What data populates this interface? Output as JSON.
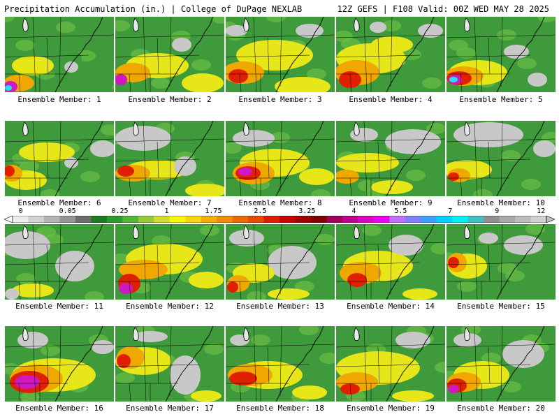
{
  "header": {
    "left": "Precipitation Accumulation (in.) | College of DuPage NEXLAB",
    "right": "12Z GEFS | F108 Valid: 00Z WED MAY 28 2025"
  },
  "caption_prefix": "Ensemble Member:",
  "panels": [
    {
      "member": "1",
      "caption": "Ensemble Member: 1",
      "blobs": [
        [
          "g",
          70,
          60,
          40,
          20
        ],
        [
          "y",
          40,
          70,
          30,
          14
        ],
        [
          "o",
          20,
          95,
          22,
          12
        ],
        [
          "m",
          8,
          100,
          10,
          8
        ],
        [
          "c",
          5,
          102,
          5,
          4
        ],
        [
          "w",
          95,
          72,
          10,
          8
        ],
        [
          "g",
          130,
          95,
          25,
          18
        ]
      ]
    },
    {
      "member": "2",
      "caption": "Ensemble Member: 2",
      "blobs": [
        [
          "y",
          60,
          70,
          45,
          18
        ],
        [
          "o",
          25,
          80,
          25,
          14
        ],
        [
          "m",
          8,
          90,
          9,
          8
        ],
        [
          "y",
          125,
          95,
          30,
          14
        ],
        [
          "w",
          95,
          40,
          14,
          10
        ]
      ]
    },
    {
      "member": "3",
      "caption": "Ensemble Member: 3",
      "blobs": [
        [
          "y",
          70,
          55,
          55,
          22
        ],
        [
          "o",
          25,
          80,
          30,
          16
        ],
        [
          "r",
          18,
          85,
          14,
          10
        ],
        [
          "y",
          110,
          100,
          40,
          14
        ],
        [
          "w",
          120,
          20,
          20,
          10
        ],
        [
          "w",
          15,
          20,
          16,
          8
        ]
      ]
    },
    {
      "member": "4",
      "caption": "Ensemble Member: 4",
      "blobs": [
        [
          "y",
          50,
          60,
          50,
          22
        ],
        [
          "o",
          30,
          80,
          32,
          18
        ],
        [
          "r",
          20,
          90,
          16,
          12
        ],
        [
          "y",
          80,
          40,
          30,
          12
        ],
        [
          "w",
          135,
          20,
          18,
          10
        ],
        [
          "w",
          60,
          15,
          12,
          8
        ]
      ]
    },
    {
      "member": "5",
      "caption": "Ensemble Member: 5",
      "blobs": [
        [
          "y",
          45,
          80,
          42,
          18
        ],
        [
          "o",
          25,
          85,
          28,
          14
        ],
        [
          "r",
          18,
          88,
          18,
          10
        ],
        [
          "m",
          12,
          90,
          10,
          7
        ],
        [
          "c",
          10,
          90,
          6,
          4
        ],
        [
          "w",
          100,
          50,
          18,
          10
        ],
        [
          "w",
          130,
          90,
          14,
          10
        ]
      ]
    },
    {
      "member": "6",
      "caption": "Ensemble Member: 6",
      "blobs": [
        [
          "y",
          60,
          45,
          40,
          14
        ],
        [
          "y",
          30,
          85,
          30,
          14
        ],
        [
          "o",
          10,
          75,
          15,
          12
        ],
        [
          "r",
          6,
          72,
          8,
          8
        ],
        [
          "w",
          140,
          40,
          18,
          12
        ],
        [
          "w",
          95,
          60,
          10,
          8
        ]
      ]
    },
    {
      "member": "7",
      "caption": "Ensemble Member: 7",
      "blobs": [
        [
          "w",
          40,
          25,
          40,
          18
        ],
        [
          "y",
          60,
          70,
          45,
          14
        ],
        [
          "o",
          25,
          75,
          25,
          12
        ],
        [
          "r",
          15,
          72,
          12,
          8
        ],
        [
          "w",
          100,
          65,
          16,
          14
        ],
        [
          "y",
          130,
          100,
          30,
          10
        ]
      ]
    },
    {
      "member": "8",
      "caption": "Ensemble Member: 8",
      "blobs": [
        [
          "y",
          70,
          60,
          50,
          20
        ],
        [
          "o",
          40,
          75,
          30,
          16
        ],
        [
          "r",
          32,
          75,
          18,
          10
        ],
        [
          "m",
          28,
          73,
          10,
          6
        ],
        [
          "w",
          40,
          25,
          30,
          12
        ],
        [
          "y",
          130,
          80,
          25,
          12
        ]
      ]
    },
    {
      "member": "9",
      "caption": "Ensemble Member: 9",
      "blobs": [
        [
          "w",
          110,
          30,
          40,
          18
        ],
        [
          "y",
          45,
          60,
          45,
          14
        ],
        [
          "o",
          15,
          80,
          18,
          10
        ],
        [
          "y",
          80,
          95,
          30,
          10
        ],
        [
          "w",
          40,
          20,
          20,
          10
        ]
      ]
    },
    {
      "member": "10",
      "caption": "Ensemble Member: 10",
      "blobs": [
        [
          "w",
          60,
          20,
          50,
          18
        ],
        [
          "y",
          30,
          70,
          35,
          14
        ],
        [
          "o",
          18,
          78,
          16,
          10
        ],
        [
          "r",
          10,
          80,
          8,
          6
        ],
        [
          "w",
          140,
          40,
          16,
          12
        ]
      ]
    },
    {
      "member": "11",
      "caption": "Ensemble Member: 11",
      "blobs": [
        [
          "w",
          30,
          30,
          35,
          20
        ],
        [
          "w",
          100,
          60,
          28,
          22
        ],
        [
          "y",
          40,
          95,
          30,
          10
        ],
        [
          "w",
          10,
          100,
          10,
          8
        ]
      ]
    },
    {
      "member": "12",
      "caption": "Ensemble Member: 12",
      "blobs": [
        [
          "y",
          70,
          50,
          55,
          22
        ],
        [
          "o",
          40,
          65,
          35,
          14
        ],
        [
          "r",
          20,
          85,
          16,
          14
        ],
        [
          "m",
          15,
          92,
          10,
          8
        ],
        [
          "y",
          130,
          80,
          25,
          12
        ]
      ]
    },
    {
      "member": "13",
      "caption": "Ensemble Member: 13",
      "blobs": [
        [
          "w",
          95,
          55,
          35,
          24
        ],
        [
          "y",
          40,
          70,
          30,
          14
        ],
        [
          "o",
          18,
          85,
          16,
          12
        ],
        [
          "r",
          10,
          90,
          8,
          8
        ],
        [
          "y",
          90,
          100,
          30,
          8
        ],
        [
          "w",
          30,
          20,
          25,
          12
        ]
      ]
    },
    {
      "member": "14",
      "caption": "Ensemble Member: 14",
      "blobs": [
        [
          "y",
          60,
          60,
          50,
          22
        ],
        [
          "o",
          35,
          70,
          30,
          16
        ],
        [
          "r",
          30,
          80,
          14,
          10
        ],
        [
          "w",
          100,
          30,
          25,
          15
        ],
        [
          "y",
          120,
          100,
          25,
          8
        ]
      ]
    },
    {
      "member": "15",
      "caption": "Ensemble Member: 15",
      "blobs": [
        [
          "y",
          30,
          60,
          28,
          18
        ],
        [
          "o",
          15,
          55,
          14,
          14
        ],
        [
          "r",
          10,
          55,
          8,
          8
        ],
        [
          "w",
          110,
          30,
          28,
          14
        ],
        [
          "w",
          60,
          20,
          14,
          8
        ],
        [
          "g",
          120,
          95,
          20,
          12
        ]
      ]
    },
    {
      "member": "16",
      "caption": "Ensemble Member: 16",
      "blobs": [
        [
          "y",
          70,
          70,
          60,
          24
        ],
        [
          "o",
          45,
          75,
          38,
          20
        ],
        [
          "r",
          35,
          80,
          28,
          16
        ],
        [
          "m",
          32,
          80,
          18,
          10
        ],
        [
          "w",
          40,
          20,
          22,
          12
        ],
        [
          "w",
          140,
          30,
          16,
          10
        ]
      ]
    },
    {
      "member": "17",
      "caption": "Ensemble Member: 17",
      "blobs": [
        [
          "y",
          40,
          50,
          40,
          20
        ],
        [
          "o",
          22,
          45,
          20,
          16
        ],
        [
          "r",
          12,
          50,
          10,
          10
        ],
        [
          "w",
          100,
          70,
          22,
          28
        ],
        [
          "w",
          50,
          15,
          25,
          8
        ],
        [
          "y",
          130,
          100,
          22,
          8
        ]
      ]
    },
    {
      "member": "18",
      "caption": "Ensemble Member: 18",
      "blobs": [
        [
          "y",
          60,
          70,
          50,
          20
        ],
        [
          "o",
          35,
          70,
          32,
          16
        ],
        [
          "r",
          25,
          75,
          20,
          10
        ],
        [
          "y",
          120,
          95,
          25,
          10
        ],
        [
          "w",
          20,
          20,
          14,
          8
        ]
      ]
    },
    {
      "member": "19",
      "caption": "Ensemble Member: 19",
      "blobs": [
        [
          "y",
          60,
          60,
          60,
          24
        ],
        [
          "o",
          30,
          80,
          30,
          14
        ],
        [
          "r",
          20,
          90,
          14,
          8
        ],
        [
          "w",
          110,
          20,
          25,
          12
        ],
        [
          "y",
          110,
          100,
          30,
          8
        ]
      ]
    },
    {
      "member": "20",
      "caption": "Ensemble Member: 20",
      "blobs": [
        [
          "w",
          110,
          40,
          30,
          20
        ],
        [
          "y",
          50,
          70,
          40,
          20
        ],
        [
          "o",
          25,
          80,
          24,
          14
        ],
        [
          "r",
          15,
          85,
          14,
          10
        ],
        [
          "m",
          10,
          90,
          8,
          6
        ],
        [
          "w",
          30,
          20,
          20,
          10
        ]
      ]
    }
  ],
  "colorbar": {
    "ticks": [
      "0",
      "0.05",
      "0.25",
      "1",
      "1.75",
      "2.5",
      "3.25",
      "4",
      "5.5",
      "7",
      "9",
      "12"
    ],
    "colors": [
      "#ededed",
      "#d2d2d2",
      "#b4b4b4",
      "#969696",
      "#6e6e6e",
      "#1e7b1e",
      "#2e9b2e",
      "#53b53b",
      "#93c93b",
      "#d0dc2a",
      "#f7f70a",
      "#f5d60a",
      "#f0b000",
      "#f08c00",
      "#ec6a00",
      "#e84a00",
      "#e01a00",
      "#c80000",
      "#a00000",
      "#800000",
      "#a0005a",
      "#c0008a",
      "#e000c0",
      "#f000f0",
      "#c070ff",
      "#8080ff",
      "#40a0ff",
      "#00d0ff",
      "#00f0f0",
      "#40c0c0",
      "#909090",
      "#a8a8a8",
      "#bcbcbc",
      "#d0d0d0"
    ],
    "tick_positions": [
      0.03,
      0.115,
      0.21,
      0.295,
      0.38,
      0.465,
      0.55,
      0.635,
      0.72,
      0.81,
      0.895,
      0.975
    ]
  },
  "palette": {
    "g": "#3f9a3c",
    "lg": "#6bbd45",
    "y": "#e6e618",
    "o": "#f0a800",
    "r": "#e02000",
    "m": "#d018c0",
    "c": "#20e0f0",
    "w": "#c8c8c8"
  }
}
